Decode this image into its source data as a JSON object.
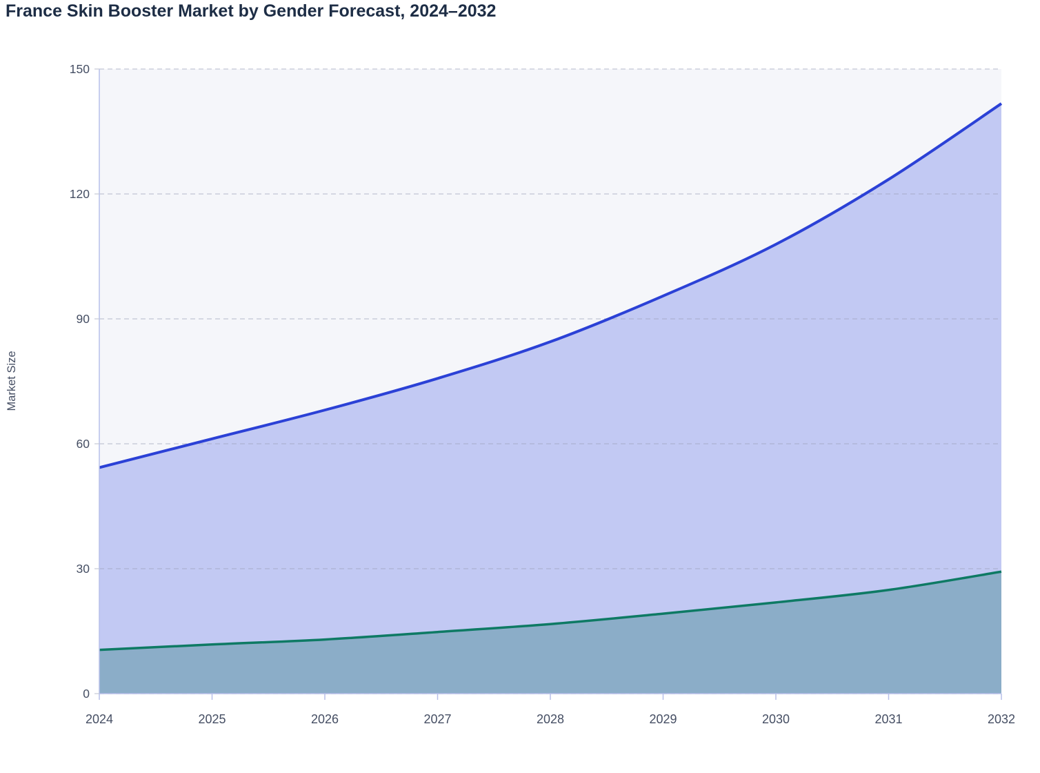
{
  "title": {
    "text": "France Skin Booster Market by Gender Forecast, 2024–2032"
  },
  "chart_data": {
    "type": "area",
    "title": "France Skin Booster Market by Gender Forecast, 2024–2032",
    "x": [
      2024,
      2025,
      2026,
      2027,
      2028,
      2029,
      2030,
      2031,
      2032
    ],
    "series": [
      {
        "name": "upper-blue-series",
        "values": [
          54.3,
          61.2,
          68.1,
          75.7,
          84.5,
          95.5,
          107.9,
          123.5,
          141.7
        ],
        "line_color": "#2b41d6",
        "fill_color": "#c2c9f3"
      },
      {
        "name": "lower-teal-series",
        "values": [
          10.5,
          11.8,
          13.0,
          14.8,
          16.7,
          19.2,
          21.9,
          24.9,
          29.3
        ],
        "line_color": "#0e7a64",
        "fill_color": "#8badc8"
      }
    ],
    "xlabel": "",
    "ylabel": "Market Size",
    "ylim": [
      0,
      150
    ],
    "yticks": [
      0,
      30,
      60,
      90,
      120,
      150
    ],
    "ytick_labels": [
      "0",
      "30",
      "60",
      "90",
      "120",
      "150"
    ],
    "xtick_labels": [
      "2024",
      "2025",
      "2026",
      "2027",
      "2028",
      "2029",
      "2030",
      "2031",
      "2032"
    ],
    "grid": "horizontal-dashed",
    "legend": "none"
  },
  "styles": {
    "page_bg": "#ffffff",
    "plot_bg": "#f5f6fa",
    "title_color": "#1d2d45",
    "axis_text_color": "#454e63",
    "axis_line_color": "#b7bfe9",
    "y_tick_mark_color": "#c9cdd9",
    "grid_color": "rgba(158,164,188,0.5)"
  }
}
